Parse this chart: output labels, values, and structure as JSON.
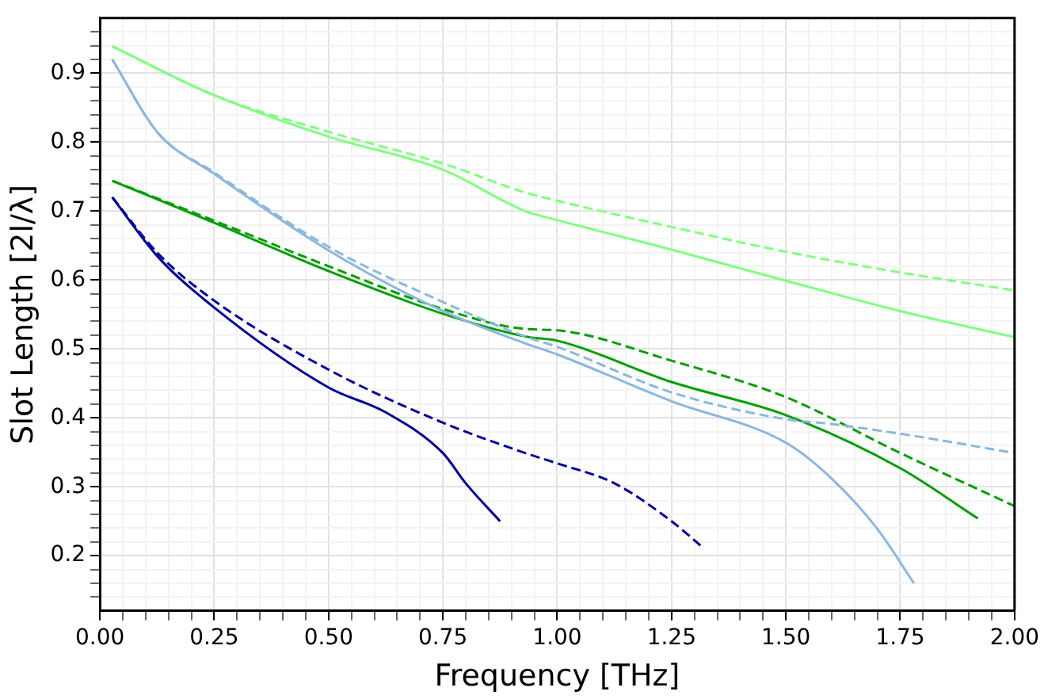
{
  "chart_data": {
    "type": "line",
    "xlabel": "Frequency [THz]",
    "ylabel": "Slot Length [2l/λ]",
    "xlim": [
      0,
      2
    ],
    "ylim": [
      0.12,
      0.98
    ],
    "xticks": [
      {
        "value": 0,
        "label": "0.00"
      },
      {
        "value": 0.05,
        "label": null
      },
      {
        "value": 0.1,
        "label": null
      },
      {
        "value": 0.15,
        "label": null
      },
      {
        "value": 0.2,
        "label": null
      },
      {
        "value": 0.25,
        "label": "0.25"
      },
      {
        "value": 0.3,
        "label": null
      },
      {
        "value": 0.35,
        "label": null
      },
      {
        "value": 0.4,
        "label": null
      },
      {
        "value": 0.45,
        "label": null
      },
      {
        "value": 0.5,
        "label": "0.50"
      },
      {
        "value": 0.55,
        "label": null
      },
      {
        "value": 0.6,
        "label": null
      },
      {
        "value": 0.65,
        "label": null
      },
      {
        "value": 0.7,
        "label": null
      },
      {
        "value": 0.75,
        "label": "0.75"
      },
      {
        "value": 0.8,
        "label": null
      },
      {
        "value": 0.85,
        "label": null
      },
      {
        "value": 0.9,
        "label": null
      },
      {
        "value": 0.95,
        "label": null
      },
      {
        "value": 1,
        "label": "1.00"
      },
      {
        "value": 1.05,
        "label": null
      },
      {
        "value": 1.1,
        "label": null
      },
      {
        "value": 1.15,
        "label": null
      },
      {
        "value": 1.2,
        "label": null
      },
      {
        "value": 1.25,
        "label": "1.25"
      },
      {
        "value": 1.3,
        "label": null
      },
      {
        "value": 1.35,
        "label": null
      },
      {
        "value": 1.4,
        "label": null
      },
      {
        "value": 1.45,
        "label": null
      },
      {
        "value": 1.5,
        "label": "1.50"
      },
      {
        "value": 1.55,
        "label": null
      },
      {
        "value": 1.6,
        "label": null
      },
      {
        "value": 1.65,
        "label": null
      },
      {
        "value": 1.7,
        "label": null
      },
      {
        "value": 1.75,
        "label": "1.75"
      },
      {
        "value": 1.8,
        "label": null
      },
      {
        "value": 1.85,
        "label": null
      },
      {
        "value": 1.9,
        "label": null
      },
      {
        "value": 1.95,
        "label": null
      },
      {
        "value": 2,
        "label": "2.00"
      }
    ],
    "yticks": [
      {
        "value": 0.14,
        "label": null
      },
      {
        "value": 0.16,
        "label": null
      },
      {
        "value": 0.18,
        "label": null
      },
      0.2,
      {
        "value": 0.22,
        "label": null
      },
      {
        "value": 0.24,
        "label": null
      },
      {
        "value": 0.26,
        "label": null
      },
      {
        "value": 0.28,
        "label": null
      },
      0.3,
      {
        "value": 0.32,
        "label": null
      },
      {
        "value": 0.34,
        "label": null
      },
      {
        "value": 0.36,
        "label": null
      },
      {
        "value": 0.38,
        "label": null
      },
      0.4,
      {
        "value": 0.42,
        "label": null
      },
      {
        "value": 0.44,
        "label": null
      },
      {
        "value": 0.46,
        "label": null
      },
      {
        "value": 0.48,
        "label": null
      },
      0.5,
      {
        "value": 0.52,
        "label": null
      },
      {
        "value": 0.54,
        "label": null
      },
      {
        "value": 0.56,
        "label": null
      },
      {
        "value": 0.58,
        "label": null
      },
      0.6,
      {
        "value": 0.62,
        "label": null
      },
      {
        "value": 0.64,
        "label": null
      },
      {
        "value": 0.66,
        "label": null
      },
      {
        "value": 0.68,
        "label": null
      },
      0.7,
      {
        "value": 0.72,
        "label": null
      },
      {
        "value": 0.74,
        "label": null
      },
      {
        "value": 0.76,
        "label": null
      },
      {
        "value": 0.78,
        "label": null
      },
      0.8,
      {
        "value": 0.82,
        "label": null
      },
      {
        "value": 0.84,
        "label": null
      },
      {
        "value": 0.86,
        "label": null
      },
      {
        "value": 0.88,
        "label": null
      },
      0.9,
      {
        "value": 0.92,
        "label": null
      },
      {
        "value": 0.94,
        "label": null
      },
      {
        "value": 0.96,
        "label": null
      }
    ],
    "grid": true,
    "legend": false,
    "marker": "none",
    "series": [
      {
        "color": "#80ff80",
        "line_style": "solid",
        "x": [
          0.027,
          0.25,
          0.5,
          0.75,
          0.93,
          1.0,
          1.25,
          1.5,
          1.75,
          2.0
        ],
        "values": [
          0.939,
          0.868,
          0.808,
          0.76,
          0.7,
          0.687,
          0.644,
          0.599,
          0.555,
          0.517
        ]
      },
      {
        "color": "#80ff80",
        "line_style": "dashed",
        "x": [
          0.027,
          0.25,
          0.5,
          0.75,
          0.93,
          1.0,
          1.25,
          1.5,
          1.75,
          2.0
        ],
        "values": [
          0.939,
          0.868,
          0.815,
          0.769,
          0.727,
          0.715,
          0.677,
          0.641,
          0.611,
          0.585
        ]
      },
      {
        "color": "#8ab8e0",
        "line_style": "solid",
        "x": [
          0.027,
          0.126,
          0.25,
          0.5,
          0.75,
          0.93,
          1.0,
          1.25,
          1.5,
          1.6,
          1.7,
          1.78
        ],
        "values": [
          0.92,
          0.814,
          0.754,
          0.643,
          0.555,
          0.508,
          0.492,
          0.424,
          0.364,
          0.312,
          0.239,
          0.16
        ]
      },
      {
        "color": "#8ab8e0",
        "line_style": "dashed",
        "x": [
          0.027,
          0.126,
          0.25,
          0.5,
          0.75,
          0.93,
          1.0,
          1.25,
          1.5,
          1.6,
          1.75,
          2.0
        ],
        "values": [
          0.92,
          0.814,
          0.756,
          0.648,
          0.568,
          0.518,
          0.503,
          0.437,
          0.398,
          0.391,
          0.377,
          0.349
        ]
      },
      {
        "color": "#00a000",
        "line_style": "solid",
        "x": [
          0.027,
          0.25,
          0.5,
          0.75,
          0.93,
          1.0,
          1.25,
          1.5,
          1.75,
          1.92
        ],
        "values": [
          0.744,
          0.683,
          0.613,
          0.551,
          0.518,
          0.512,
          0.452,
          0.404,
          0.327,
          0.254
        ]
      },
      {
        "color": "#00a000",
        "line_style": "dashed",
        "x": [
          0.027,
          0.25,
          0.5,
          0.75,
          0.93,
          1.0,
          1.25,
          1.5,
          1.75,
          2.0
        ],
        "values": [
          0.744,
          0.686,
          0.62,
          0.558,
          0.529,
          0.527,
          0.483,
          0.43,
          0.349,
          0.272
        ]
      },
      {
        "color": "#0000a0",
        "line_style": "solid",
        "x": [
          0.027,
          0.125,
          0.25,
          0.5,
          0.625,
          0.75,
          0.8,
          0.875
        ],
        "values": [
          0.72,
          0.635,
          0.56,
          0.444,
          0.408,
          0.349,
          0.305,
          0.25
        ]
      },
      {
        "color": "#0000a0",
        "line_style": "dashed",
        "x": [
          0.027,
          0.125,
          0.25,
          0.5,
          0.75,
          0.93,
          1.0,
          1.125,
          1.25,
          1.32
        ],
        "values": [
          0.72,
          0.64,
          0.57,
          0.47,
          0.393,
          0.349,
          0.334,
          0.305,
          0.25,
          0.211
        ]
      }
    ]
  }
}
